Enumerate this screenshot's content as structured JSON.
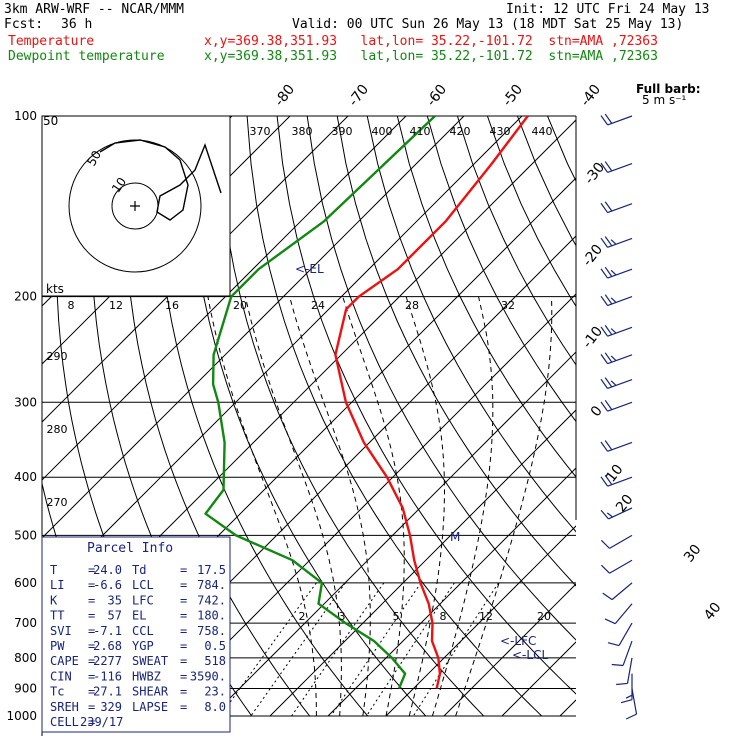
{
  "header": {
    "model": "3km ARW-WRF -- NCAR/MMM",
    "init": "Init: 12 UTC Fri 24 May 13",
    "fcst_label": "Fcst:",
    "fcst_value": "36 h",
    "valid": "Valid: 00 UTC Sun 26 May 13 (18 MDT Sat 25 May 13)",
    "temp_label": "Temperature",
    "temp_info": "x,y=369.38,351.93   lat,lon= 35.22,-101.72  stn=AMA ,72363",
    "dew_label": "Dewpoint temperature",
    "dew_info": "x,y=369.38,351.93   lat,lon= 35.22,-101.72  stn=AMA ,72363"
  },
  "colors": {
    "temperature": "#ee1111",
    "dewpoint": "#118811",
    "annotation": "#1a237e"
  },
  "chart_data": {
    "type": "line",
    "pressure_levels": [
      100,
      200,
      300,
      400,
      500,
      600,
      700,
      800,
      900,
      1000
    ],
    "pressure_labels": [
      "100",
      "200",
      "300",
      "400",
      "500",
      "600",
      "700",
      "800",
      "900",
      "1000"
    ],
    "isotherm_labels": [
      "-80",
      "-70",
      "-60",
      "-50",
      "-40",
      "-30",
      "-20",
      "-10",
      "0",
      "10",
      "20",
      "30",
      "40"
    ],
    "theta_labels": [
      "370",
      "380",
      "390",
      "400",
      "410",
      "420",
      "430",
      "440",
      "290",
      "280",
      "270"
    ],
    "mixing_labels": [
      "2",
      "3",
      "5",
      "8",
      "12",
      "20"
    ],
    "series": [
      {
        "name": "Temperature",
        "p": [
          100,
          120,
          150,
          180,
          200,
          210,
          250,
          300,
          350,
          400,
          450,
          500,
          550,
          600,
          650,
          700,
          750,
          800,
          850,
          900
        ],
        "t": [
          -59,
          -57,
          -55,
          -55,
          -57,
          -57,
          -51,
          -41,
          -31,
          -21,
          -13,
          -7,
          -2,
          3,
          8,
          12,
          15,
          19,
          22,
          24
        ]
      },
      {
        "name": "Dewpoint temperature",
        "p": [
          100,
          150,
          180,
          200,
          250,
          280,
          300,
          350,
          420,
          460,
          500,
          550,
          600,
          650,
          700,
          750,
          800,
          850,
          900
        ],
        "t": [
          -75,
          -76,
          -79,
          -79,
          -72,
          -67,
          -63,
          -55,
          -47,
          -46,
          -37,
          -23,
          -14,
          -11,
          -3,
          5,
          11,
          16,
          17.5
        ]
      }
    ],
    "ylabel": "",
    "xlabel": "",
    "annotations": {
      "el": "<-EL",
      "lfc": "<-LFC",
      "lcl": "<-LCL",
      "m": "M"
    },
    "barb_label_1": "Full barb:",
    "barb_label_2": "5 m s⁻¹",
    "winds": [
      {
        "p": 100,
        "spd": 18,
        "dir": 250
      },
      {
        "p": 120,
        "spd": 20,
        "dir": 250
      },
      {
        "p": 140,
        "spd": 22,
        "dir": 250
      },
      {
        "p": 160,
        "spd": 24,
        "dir": 250
      },
      {
        "p": 180,
        "spd": 25,
        "dir": 250
      },
      {
        "p": 200,
        "spd": 25,
        "dir": 250
      },
      {
        "p": 225,
        "spd": 25,
        "dir": 250
      },
      {
        "p": 250,
        "spd": 25,
        "dir": 250
      },
      {
        "p": 275,
        "spd": 25,
        "dir": 250
      },
      {
        "p": 300,
        "spd": 22,
        "dir": 250
      },
      {
        "p": 350,
        "spd": 20,
        "dir": 250
      },
      {
        "p": 400,
        "spd": 18,
        "dir": 250
      },
      {
        "p": 450,
        "spd": 15,
        "dir": 245
      },
      {
        "p": 500,
        "spd": 12,
        "dir": 240
      },
      {
        "p": 550,
        "spd": 10,
        "dir": 240
      },
      {
        "p": 600,
        "spd": 10,
        "dir": 230
      },
      {
        "p": 650,
        "spd": 8,
        "dir": 220
      },
      {
        "p": 700,
        "spd": 8,
        "dir": 210
      },
      {
        "p": 750,
        "spd": 10,
        "dir": 200
      },
      {
        "p": 800,
        "spd": 12,
        "dir": 190
      },
      {
        "p": 850,
        "spd": 14,
        "dir": 180
      },
      {
        "p": 900,
        "spd": 12,
        "dir": 170
      }
    ]
  },
  "hodograph": {
    "unit": "kts",
    "ring_labels": [
      "50",
      "10"
    ],
    "speed_labels": [
      "8",
      "12",
      "16",
      "20",
      "24",
      "28",
      "32"
    ]
  },
  "parcel": {
    "title": "Parcel Info",
    "rows": [
      [
        "T",
        "=",
        "24.0",
        "Td",
        "=",
        "17.5"
      ],
      [
        "LI",
        "=",
        "-6.6",
        "LCL",
        "=",
        "784."
      ],
      [
        "K",
        "=",
        "35",
        "LFC",
        "=",
        "742."
      ],
      [
        "TT",
        "=",
        "57",
        "EL",
        "=",
        "180."
      ],
      [
        "SVI",
        "=",
        "-7.1",
        "CCL",
        "=",
        "758."
      ],
      [
        "PW",
        "=",
        "2.68",
        "YGP",
        "=",
        "0.5"
      ],
      [
        "CAPE",
        "=",
        "2277",
        "SWEAT",
        "=",
        "518"
      ],
      [
        "CIN",
        "=",
        "-116",
        "HWBZ",
        "=",
        "3590."
      ],
      [
        "Tc",
        "=",
        "27.1",
        "SHEAR",
        "=",
        "23."
      ],
      [
        "SREH",
        "=",
        "329",
        "LAPSE",
        "=",
        "8.0"
      ],
      [
        "CELL",
        "=",
        "239/17",
        "",
        "",
        ""
      ]
    ]
  }
}
